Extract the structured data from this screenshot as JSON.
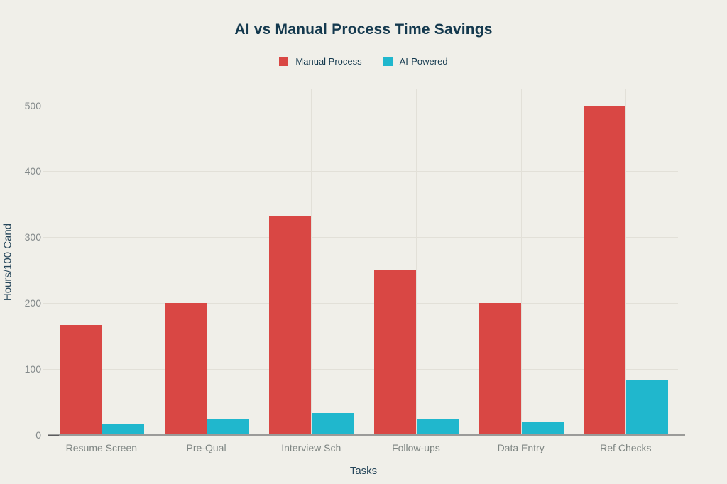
{
  "chart_data": {
    "type": "bar",
    "title": "AI vs Manual Process Time Savings",
    "xlabel": "Tasks",
    "ylabel": "Hours/100 Cand",
    "categories": [
      "Resume Screen",
      "Pre-Qual",
      "Interview Sch",
      "Follow-ups",
      "Data Entry",
      "Ref Checks"
    ],
    "series": [
      {
        "name": "Manual Process",
        "color": "#d94744",
        "values": [
          167,
          200,
          333,
          250,
          200,
          500
        ]
      },
      {
        "name": "AI-Powered",
        "color": "#20b7cd",
        "values": [
          17,
          25,
          33,
          25,
          20,
          83
        ]
      }
    ],
    "ylim": [
      0,
      500
    ],
    "yticks": [
      0,
      100,
      200,
      300,
      400,
      500
    ],
    "grid": true,
    "legend_position": "top-center"
  },
  "colors": {
    "background": "#f0efe9",
    "gridline": "#e2e0d8",
    "axis_line": "#9b9b99",
    "zero_tick": "#5c5c5e",
    "tick_label": "#83898a",
    "category_label": "#7f8683",
    "title_text": "#14394e",
    "axis_title_text": "#26465a",
    "legend_text": "#14394e"
  }
}
